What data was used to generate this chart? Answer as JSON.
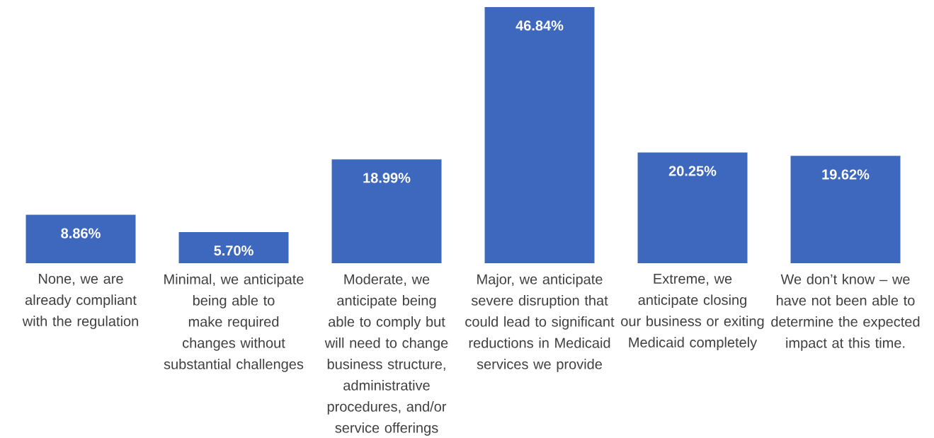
{
  "chart_data": {
    "type": "bar",
    "categories": [
      "None, we are already compliant with the regulation",
      "Minimal, we anticipate being able to make required changes without substantial challenges",
      "Moderate, we anticipate being able to comply but will need to change business structure, administrative procedures, and/or service offerings",
      "Major, we anticipate severe disruption that could lead to significant reductions in Medicaid services we provide",
      "Extreme, we anticipate closing our business or exiting Medicaid completely",
      "We don’t know – we have not been able to determine the expected impact at this time."
    ],
    "values": [
      8.86,
      5.7,
      18.99,
      46.84,
      20.25,
      19.62
    ],
    "value_labels": [
      "8.86%",
      "5.70%",
      "18.99%",
      "46.84%",
      "20.25%",
      "19.62%"
    ],
    "color": "#3d68bd"
  }
}
